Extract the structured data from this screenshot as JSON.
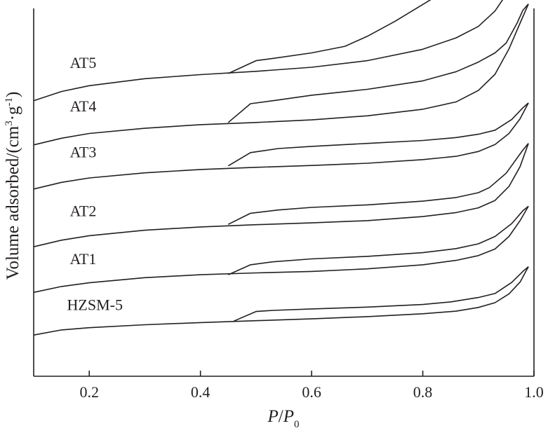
{
  "chart_data": {
    "type": "line",
    "title": "",
    "xlabel_parts": [
      "P",
      "/",
      "P",
      "0"
    ],
    "ylabel_parts": [
      "Volume adsorbed/(cm",
      "3",
      "·g",
      "-1",
      ")"
    ],
    "xlim": [
      0.1,
      1.0
    ],
    "ylim": [
      0,
      100
    ],
    "x_ticks": [
      0.2,
      0.4,
      0.6,
      0.8,
      1.0
    ],
    "x_tick_labels": [
      "0.2",
      "0.4",
      "0.6",
      "0.8",
      "1.0"
    ],
    "grid": false,
    "legend": "none (curves labeled inline)",
    "series": [
      {
        "name": "HZSM-5",
        "adsorption": {
          "x": [
            0.1,
            0.15,
            0.2,
            0.3,
            0.4,
            0.5,
            0.6,
            0.7,
            0.8,
            0.86,
            0.9,
            0.93,
            0.955,
            0.975,
            0.99
          ],
          "y": [
            11.2,
            12.6,
            13.2,
            14.0,
            14.6,
            15.1,
            15.6,
            16.2,
            17.0,
            17.7,
            18.7,
            20.0,
            22.4,
            25.6,
            29.8
          ]
        },
        "desorption": {
          "x": [
            0.99,
            0.98,
            0.96,
            0.93,
            0.9,
            0.85,
            0.8,
            0.7,
            0.6,
            0.53,
            0.5,
            0.46
          ],
          "y": [
            29.8,
            28.5,
            25.5,
            22.5,
            21.4,
            20.2,
            19.5,
            18.8,
            18.3,
            17.9,
            17.6,
            15.0
          ]
        },
        "label_anchor": {
          "x": 0.16,
          "y": 18.0
        }
      },
      {
        "name": "AT1",
        "adsorption": {
          "x": [
            0.1,
            0.15,
            0.2,
            0.3,
            0.4,
            0.5,
            0.6,
            0.7,
            0.8,
            0.86,
            0.9,
            0.93,
            0.955,
            0.975,
            0.99
          ],
          "y": [
            22.8,
            24.4,
            25.4,
            26.8,
            27.6,
            28.1,
            28.5,
            29.2,
            30.3,
            31.5,
            32.8,
            34.6,
            38.0,
            42.3,
            46.2
          ]
        },
        "desorption": {
          "x": [
            0.99,
            0.98,
            0.96,
            0.93,
            0.9,
            0.86,
            0.8,
            0.7,
            0.6,
            0.53,
            0.49,
            0.45
          ],
          "y": [
            46.2,
            45.0,
            41.5,
            38.0,
            36.0,
            34.7,
            33.6,
            32.6,
            31.9,
            31.1,
            30.3,
            27.6
          ]
        },
        "label_anchor": {
          "x": 0.165,
          "y": 30.5
        }
      },
      {
        "name": "AT2",
        "adsorption": {
          "x": [
            0.1,
            0.15,
            0.2,
            0.3,
            0.4,
            0.5,
            0.6,
            0.7,
            0.8,
            0.86,
            0.9,
            0.93,
            0.955,
            0.975,
            0.99
          ],
          "y": [
            35.2,
            37.0,
            38.2,
            39.7,
            40.6,
            41.2,
            41.7,
            42.3,
            43.4,
            44.5,
            45.8,
            47.8,
            51.6,
            57.0,
            63.3
          ]
        },
        "desorption": {
          "x": [
            0.99,
            0.98,
            0.95,
            0.92,
            0.9,
            0.86,
            0.8,
            0.7,
            0.6,
            0.54,
            0.49,
            0.45
          ],
          "y": [
            63.3,
            61.5,
            55.2,
            51.3,
            49.9,
            48.6,
            47.6,
            46.6,
            45.9,
            45.2,
            44.3,
            41.3
          ]
        },
        "label_anchor": {
          "x": 0.165,
          "y": 43.5
        }
      },
      {
        "name": "AT3",
        "adsorption": {
          "x": [
            0.1,
            0.15,
            0.2,
            0.3,
            0.4,
            0.5,
            0.6,
            0.7,
            0.8,
            0.86,
            0.9,
            0.93,
            0.955,
            0.975,
            0.99
          ],
          "y": [
            50.9,
            52.7,
            53.9,
            55.3,
            56.2,
            56.8,
            57.3,
            57.9,
            58.9,
            59.8,
            61.1,
            63.0,
            66.0,
            70.0,
            74.3
          ]
        },
        "desorption": {
          "x": [
            0.99,
            0.98,
            0.96,
            0.93,
            0.9,
            0.86,
            0.8,
            0.7,
            0.6,
            0.54,
            0.49,
            0.45
          ],
          "y": [
            74.3,
            73.0,
            69.8,
            66.9,
            65.8,
            64.9,
            64.1,
            63.3,
            62.5,
            61.9,
            60.8,
            57.2
          ]
        },
        "label_anchor": {
          "x": 0.165,
          "y": 59.5
        }
      },
      {
        "name": "AT4",
        "adsorption": {
          "x": [
            0.1,
            0.15,
            0.2,
            0.3,
            0.4,
            0.5,
            0.6,
            0.7,
            0.8,
            0.86,
            0.9,
            0.93,
            0.955,
            0.975,
            0.99
          ],
          "y": [
            62.9,
            64.7,
            66.0,
            67.4,
            68.4,
            69.0,
            69.7,
            70.8,
            72.6,
            74.6,
            77.7,
            82.1,
            89.0,
            96.0,
            101.2
          ]
        },
        "desorption": {
          "x": [
            0.99,
            0.98,
            0.97,
            0.95,
            0.93,
            0.9,
            0.86,
            0.8,
            0.7,
            0.6,
            0.54,
            0.49,
            0.45
          ],
          "y": [
            101.2,
            99.5,
            96.1,
            90.6,
            87.9,
            85.4,
            82.8,
            80.3,
            78.0,
            76.4,
            75.1,
            74.1,
            69.0
          ]
        },
        "label_anchor": {
          "x": 0.165,
          "y": 72.0
        }
      },
      {
        "name": "AT5",
        "adsorption": {
          "x": [
            0.1,
            0.15,
            0.2,
            0.3,
            0.4,
            0.5,
            0.6,
            0.7,
            0.8,
            0.86,
            0.9,
            0.93,
            0.96,
            0.98,
            0.99
          ],
          "y": [
            74.9,
            77.4,
            79.0,
            80.9,
            82.0,
            82.9,
            84.0,
            85.8,
            88.9,
            92.0,
            95.1,
            99.3,
            106.0,
            111.1,
            114.9
          ]
        },
        "desorption": {
          "x": [
            0.99,
            0.96,
            0.9,
            0.83,
            0.75,
            0.7,
            0.66,
            0.6,
            0.53,
            0.5,
            0.45
          ],
          "y": [
            114.9,
            112.0,
            107.2,
            103.8,
            96.5,
            92.4,
            89.7,
            87.9,
            86.4,
            85.8,
            82.3
          ]
        },
        "label_anchor": {
          "x": 0.165,
          "y": 83.8
        }
      }
    ]
  }
}
